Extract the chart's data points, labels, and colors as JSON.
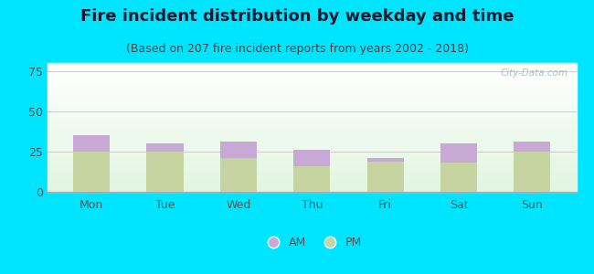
{
  "title": "Fire incident distribution by weekday and time",
  "subtitle": "(Based on 207 fire incident reports from years 2002 - 2018)",
  "categories": [
    "Mon",
    "Tue",
    "Wed",
    "Thu",
    "Fri",
    "Sat",
    "Sun"
  ],
  "pm_values": [
    25,
    25,
    21,
    16,
    19,
    18,
    25
  ],
  "am_values": [
    10,
    5,
    10,
    10,
    2,
    12,
    6
  ],
  "am_color": "#c8a8d4",
  "pm_color": "#c5d4a0",
  "background_outer": "#00e5ff",
  "ylim": [
    0,
    80
  ],
  "yticks": [
    0,
    25,
    50,
    75
  ],
  "grid_color": "#cccccc",
  "bar_width": 0.5,
  "title_fontsize": 13,
  "subtitle_fontsize": 9,
  "tick_fontsize": 9,
  "legend_fontsize": 9,
  "title_color": "#1a1a2e",
  "subtitle_color": "#444444",
  "tick_color": "#555555",
  "watermark_text": "City-Data.com",
  "watermark_color": "#99bbbb"
}
